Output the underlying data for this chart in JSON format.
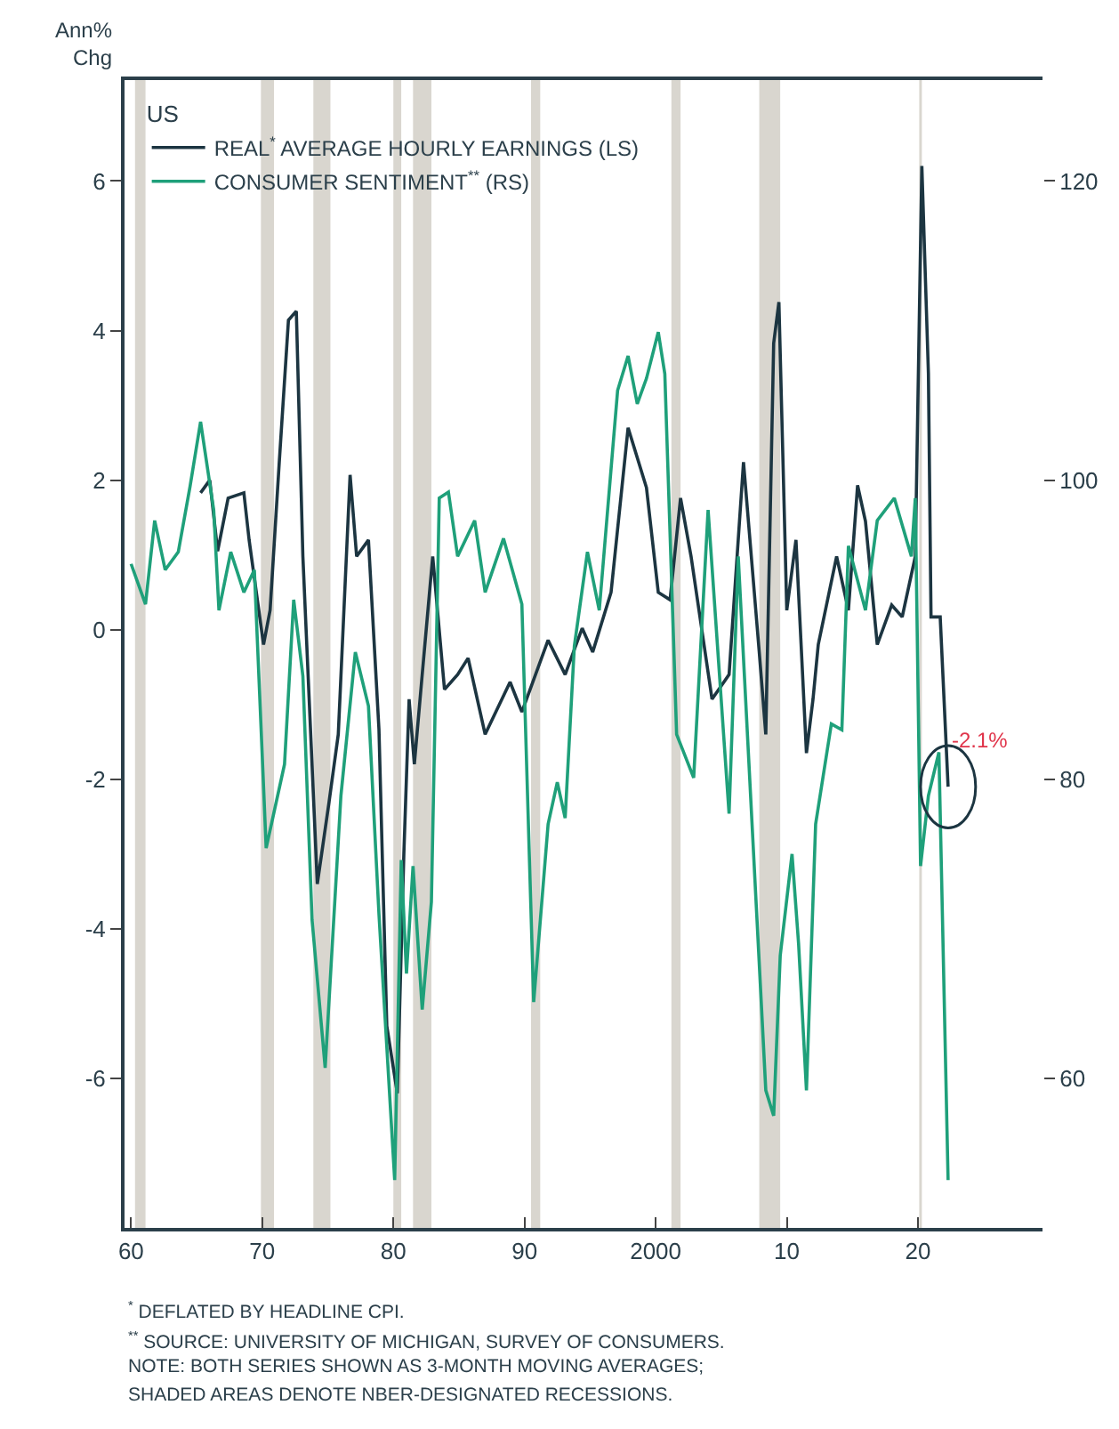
{
  "chart_data": {
    "type": "line",
    "ylabel": "Ann%\nChg",
    "legend_title": "US",
    "legend": "top left",
    "grid": false,
    "marker": "none",
    "line_style": "solid",
    "xlim": [
      1959.5,
      2029.5
    ],
    "xticks": [
      {
        "value": 1960,
        "label": "60"
      },
      {
        "value": 1970,
        "label": "70"
      },
      {
        "value": 1980,
        "label": "80"
      },
      {
        "value": 1990,
        "label": "90"
      },
      {
        "value": 2000,
        "label": "2000"
      },
      {
        "value": 2010,
        "label": "10"
      },
      {
        "value": 2020,
        "label": "20"
      }
    ],
    "ylim": [
      -8,
      7.35
    ],
    "yticks": [
      -6,
      -4,
      -2,
      0,
      2,
      4,
      6
    ],
    "y2lim": [
      50,
      126.75
    ],
    "y2ticks": [
      60,
      80,
      100,
      120
    ],
    "series": [
      {
        "name": "CONSUMER SENTIMENT$^{**}$ (RS)",
        "color": "#1fa07a",
        "axis": "y2",
        "x": [
          1960,
          1961.1,
          1961.8,
          1962.6,
          1963.6,
          1964.5,
          1965.3,
          1966.3,
          1966.7,
          1967.6,
          1968.6,
          1969.4,
          1970.3,
          1971.7,
          1972.4,
          1973.1,
          1973.8,
          1974.8,
          1976,
          1977.1,
          1978.1,
          1978.9,
          1980.1,
          1980.6,
          1981,
          1981.5,
          1982.2,
          1982.9,
          1983.5,
          1984.2,
          1984.9,
          1986.2,
          1987,
          1988.4,
          1989.8,
          1990.7,
          1991.8,
          1992.5,
          1993.1,
          1993.8,
          1994.8,
          1995.7,
          1997.1,
          1997.9,
          1998.6,
          1999.3,
          2000.2,
          2000.7,
          2001.6,
          2002.9,
          2004,
          2005.6,
          2006.3,
          2008.4,
          2009,
          2009.5,
          2010.4,
          2010.9,
          2011.5,
          2012.2,
          2013.4,
          2014.2,
          2014.7,
          2016,
          2016.9,
          2018.2,
          2019.5,
          2019.8,
          2020.2,
          2020.8,
          2021.6,
          2022.3
        ],
        "values": [
          94.4,
          91.7,
          97.3,
          94,
          95.2,
          99.6,
          103.9,
          98,
          91.3,
          95.2,
          92.5,
          94,
          75.4,
          81,
          92,
          86.9,
          70.6,
          60.7,
          78.9,
          88.5,
          84.9,
          71,
          53.2,
          74.6,
          67,
          74.2,
          64.6,
          71.8,
          98.8,
          99.2,
          94.9,
          97.3,
          92.5,
          96.1,
          91.7,
          65.1,
          77,
          79.8,
          77.4,
          88.9,
          95.2,
          91.3,
          106,
          108.3,
          105.1,
          106.8,
          109.9,
          107.1,
          83,
          80.1,
          98,
          77.7,
          94.9,
          59.2,
          57.5,
          68.2,
          75,
          69,
          59.2,
          77,
          83.7,
          83.3,
          95.6,
          91.3,
          97.3,
          98.8,
          94.9,
          98.8,
          74.2,
          78.9,
          81.8,
          53.2
        ]
      },
      {
        "name": "REAL$^{*}$ AVERAGE HOURLY EARNINGS (LS)",
        "color": "#1c3541",
        "x": [
          1965.3,
          1966.0,
          1966.6,
          1967.4,
          1968.6,
          1969.0,
          1970.1,
          1970.6,
          1971.3,
          1972.0,
          1972.6,
          1973.1,
          1974.2,
          1975.1,
          1975.8,
          1976.7,
          1977.2,
          1978.1,
          1978.9,
          1979.5,
          1980.3,
          1980.8,
          1981.2,
          1981.6,
          1982.2,
          1983,
          1983.9,
          1984.9,
          1985.7,
          1987,
          1988.9,
          1989.8,
          1991.8,
          1993.1,
          1994.4,
          1995.2,
          1996.6,
          1997.9,
          1999.3,
          2000.2,
          2001.1,
          2001.9,
          2002.7,
          2004.3,
          2005.6,
          2006.7,
          2007.9,
          2008.4,
          2009,
          2009.4,
          2010,
          2010.7,
          2011.5,
          2012,
          2012.4,
          2013.8,
          2014.7,
          2015.4,
          2016,
          2016.9,
          2018,
          2018.8,
          2019.8,
          2020.3,
          2020.8,
          2021,
          2021.7,
          2022.3
        ],
        "values": [
          1.83,
          2.0,
          1.05,
          1.76,
          1.83,
          1.2,
          -0.2,
          0.26,
          2.24,
          4.14,
          4.26,
          0.98,
          -3.4,
          -2.3,
          -1.4,
          2.07,
          0.98,
          1.2,
          -1.33,
          -5.3,
          -6.2,
          -3.0,
          -0.93,
          -1.8,
          -0.6,
          0.98,
          -0.8,
          -0.6,
          -0.38,
          -1.4,
          -0.7,
          -1.1,
          -0.14,
          -0.6,
          0.02,
          -0.3,
          0.5,
          2.7,
          1.9,
          0.5,
          0.4,
          1.76,
          0.98,
          -0.93,
          -0.6,
          2.24,
          -0.3,
          -1.4,
          3.83,
          4.38,
          0.26,
          1.2,
          -1.65,
          -0.93,
          -0.2,
          0.98,
          0.26,
          1.93,
          1.45,
          -0.2,
          0.33,
          0.17,
          0.98,
          6.2,
          3.43,
          0.17,
          0.17,
          -2.1
        ]
      }
    ],
    "bands": [
      {
        "axis": "x",
        "from": 1960.3,
        "to": 1961.1,
        "color": "#d9d6cf"
      },
      {
        "axis": "x",
        "from": 1969.9,
        "to": 1970.9,
        "color": "#d9d6cf"
      },
      {
        "axis": "x",
        "from": 1973.9,
        "to": 1975.2,
        "color": "#d9d6cf"
      },
      {
        "axis": "x",
        "from": 1980.0,
        "to": 1980.6,
        "color": "#d9d6cf"
      },
      {
        "axis": "x",
        "from": 1981.5,
        "to": 1982.9,
        "color": "#d9d6cf"
      },
      {
        "axis": "x",
        "from": 1990.5,
        "to": 1991.2,
        "color": "#d9d6cf"
      },
      {
        "axis": "x",
        "from": 2001.2,
        "to": 2001.9,
        "color": "#d9d6cf"
      },
      {
        "axis": "x",
        "from": 2007.9,
        "to": 2009.5,
        "color": "#d9d6cf"
      },
      {
        "axis": "x",
        "from": 2020.1,
        "to": 2020.3,
        "color": "#d9d6cf"
      }
    ],
    "annotations": [
      {
        "text": "-2.1%",
        "x": 2022.3,
        "y": -2.1
      },
      "$^{*}$ DEFLATED BY HEADLINE CPI.",
      "$^{**}$ SOURCE: UNIVERSITY OF MICHIGAN, SURVEY OF CONSUMERS.",
      "NOTE: BOTH SERIES SHOWN AS 3-MONTH MOVING AVERAGES;",
      "SHADED AREAS DENOTE NBER-DESIGNATED RECESSIONS."
    ]
  }
}
